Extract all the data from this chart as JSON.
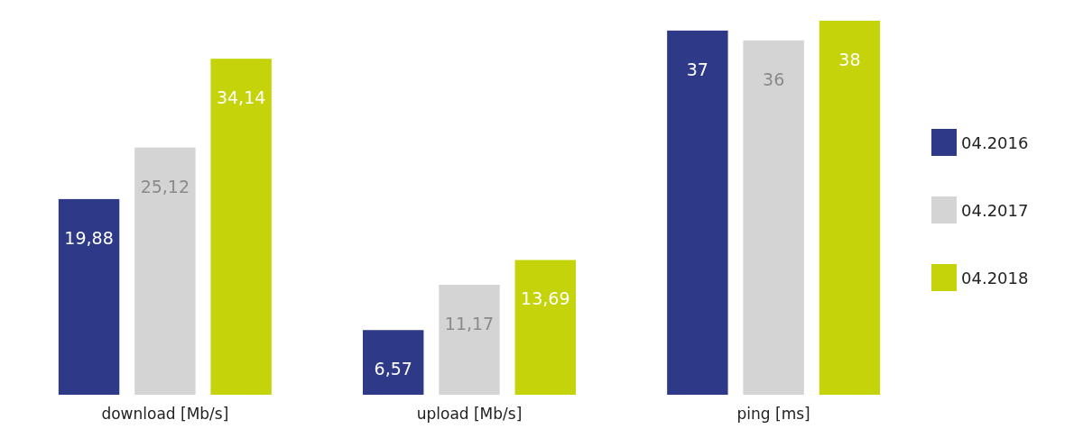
{
  "chart_data": {
    "type": "bar",
    "categories": [
      "download [Mb/s]",
      "upload [Mb/s]",
      "ping [ms]"
    ],
    "series": [
      {
        "name": "04.2016",
        "color": "#2e3a87",
        "values": [
          19.88,
          6.57,
          37
        ],
        "value_labels": [
          "19,88",
          "6,57",
          "37"
        ]
      },
      {
        "name": "04.2017",
        "color": "#d4d4d4",
        "values": [
          25.12,
          11.17,
          36
        ],
        "value_labels": [
          "25,12",
          "11,17",
          "36"
        ]
      },
      {
        "name": "04.2018",
        "color": "#c5d40a",
        "values": [
          34.14,
          13.69,
          38
        ],
        "value_labels": [
          "34,14",
          "13,69",
          "38"
        ]
      }
    ],
    "legend": "right"
  }
}
